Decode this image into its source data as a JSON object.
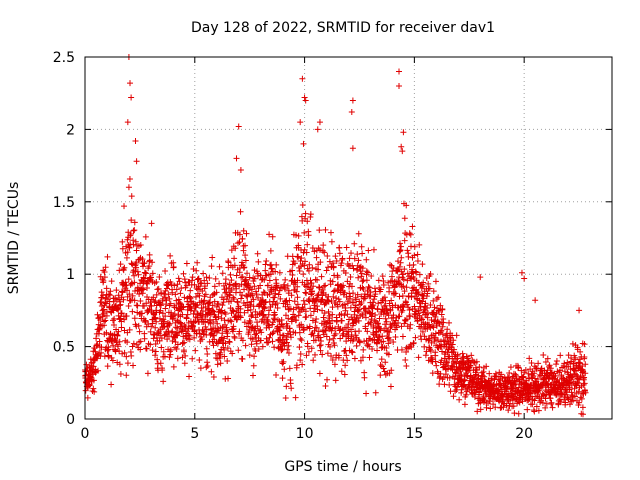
{
  "chart_data": {
    "type": "scatter",
    "title": "Day 128 of 2022, SRMTID for receiver dav1",
    "xlabel": "GPS time / hours",
    "ylabel": "SRMTID / TECUs",
    "xlim": [
      0,
      24
    ],
    "ylim": [
      0,
      2.5
    ],
    "xticks": [
      0,
      5,
      10,
      15,
      20
    ],
    "yticks": [
      0,
      0.5,
      1,
      1.5,
      2,
      2.5
    ],
    "xtick_labels": [
      "0",
      "5",
      "10",
      "15",
      "20"
    ],
    "ytick_labels": [
      "0",
      "0.5",
      "1",
      "1.5",
      "2",
      "2.5"
    ],
    "grid": true,
    "marker": "+",
    "series_color": "#e00000",
    "envelope": {
      "description": "approximate typical level and spread of points by hour",
      "hours": [
        0,
        0.2,
        0.5,
        0.8,
        1.2,
        1.6,
        2.0,
        2.4,
        3.0,
        3.5,
        4.0,
        4.5,
        5.0,
        5.5,
        6.0,
        6.5,
        7.0,
        7.5,
        8.0,
        8.5,
        9.0,
        9.5,
        10.0,
        10.5,
        11.0,
        11.5,
        12.0,
        12.5,
        13.0,
        13.5,
        14.0,
        14.5,
        15.0,
        15.5,
        16.0,
        16.5,
        17.0,
        17.5,
        18.0,
        18.5,
        19.0,
        19.5,
        20.0,
        20.5,
        21.0,
        21.5,
        22.0,
        22.5,
        22.8
      ],
      "center": [
        0.3,
        0.25,
        0.4,
        0.75,
        0.7,
        0.7,
        1.0,
        0.9,
        0.8,
        0.65,
        0.75,
        0.7,
        0.75,
        0.7,
        0.65,
        0.7,
        0.95,
        0.8,
        0.75,
        0.85,
        0.6,
        0.75,
        0.95,
        0.85,
        0.8,
        0.75,
        0.8,
        0.85,
        0.7,
        0.6,
        0.7,
        1.0,
        0.9,
        0.7,
        0.6,
        0.45,
        0.35,
        0.3,
        0.22,
        0.2,
        0.2,
        0.2,
        0.22,
        0.22,
        0.25,
        0.22,
        0.25,
        0.35,
        0.3
      ],
      "spread": [
        0.12,
        0.1,
        0.2,
        0.3,
        0.35,
        0.4,
        0.55,
        0.4,
        0.35,
        0.3,
        0.3,
        0.3,
        0.3,
        0.3,
        0.3,
        0.35,
        0.45,
        0.35,
        0.35,
        0.35,
        0.35,
        0.45,
        0.55,
        0.45,
        0.4,
        0.4,
        0.35,
        0.4,
        0.35,
        0.3,
        0.4,
        0.55,
        0.4,
        0.3,
        0.3,
        0.25,
        0.18,
        0.15,
        0.12,
        0.12,
        0.12,
        0.14,
        0.15,
        0.14,
        0.15,
        0.12,
        0.15,
        0.25,
        0.2
      ]
    },
    "notable_points": [
      {
        "x": 2.0,
        "y": 2.5
      },
      {
        "x": 2.05,
        "y": 2.32
      },
      {
        "x": 2.1,
        "y": 2.22
      },
      {
        "x": 1.95,
        "y": 2.05
      },
      {
        "x": 2.3,
        "y": 1.92
      },
      {
        "x": 2.35,
        "y": 1.78
      },
      {
        "x": 7.0,
        "y": 2.02
      },
      {
        "x": 6.9,
        "y": 1.8
      },
      {
        "x": 7.1,
        "y": 1.72
      },
      {
        "x": 9.9,
        "y": 2.35
      },
      {
        "x": 10.0,
        "y": 2.22
      },
      {
        "x": 10.05,
        "y": 2.2
      },
      {
        "x": 9.8,
        "y": 2.05
      },
      {
        "x": 9.95,
        "y": 1.9
      },
      {
        "x": 10.7,
        "y": 2.05
      },
      {
        "x": 10.6,
        "y": 2.0
      },
      {
        "x": 12.2,
        "y": 2.2
      },
      {
        "x": 12.15,
        "y": 2.12
      },
      {
        "x": 12.2,
        "y": 1.87
      },
      {
        "x": 14.3,
        "y": 2.4
      },
      {
        "x": 14.3,
        "y": 2.3
      },
      {
        "x": 14.5,
        "y": 1.98
      },
      {
        "x": 14.4,
        "y": 1.88
      },
      {
        "x": 14.45,
        "y": 1.85
      },
      {
        "x": 18.0,
        "y": 0.98
      },
      {
        "x": 19.9,
        "y": 1.01
      },
      {
        "x": 20.0,
        "y": 0.97
      },
      {
        "x": 20.5,
        "y": 0.82
      },
      {
        "x": 22.5,
        "y": 0.75
      }
    ]
  }
}
